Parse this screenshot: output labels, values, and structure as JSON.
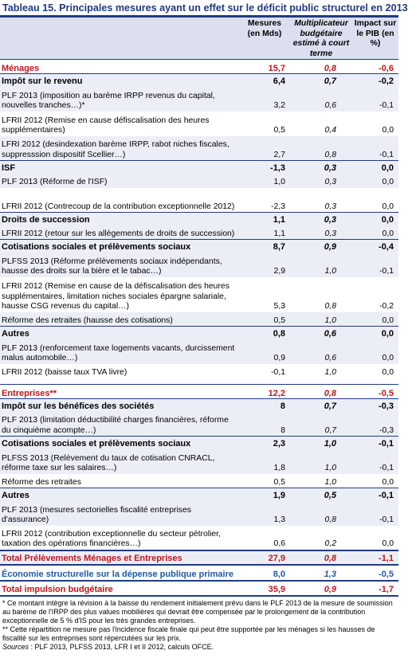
{
  "title": "Tableau 15. Principales mesures ayant un effet sur le déficit public structurel en 2013",
  "header": {
    "col1": "Mesures (en Mds)",
    "col2": "Multiplicateur budgétaire estimé à court terme",
    "col3": "Impact sur le PIB (en %)"
  },
  "rows": [
    {
      "type": "cat",
      "label": "Ménages",
      "v1": "15,7",
      "v2": "0,8",
      "v3": "-0,6"
    },
    {
      "type": "sub",
      "label": "Impôt sur le revenu",
      "v1": "6,4",
      "v2": "0,7",
      "v3": "-0,2"
    },
    {
      "type": "item",
      "lines": 2,
      "label": "PLF 2013 (imposition au barème IRPP revenus du capital, nouvelles tranches…)*",
      "v1": "3,2",
      "v2": "0,6",
      "v3": "-0,1"
    },
    {
      "type": "item",
      "lines": 2,
      "label": "LFRII 2012 (Remise en cause défiscalisation des heures supplémentaires)",
      "v1": "0,5",
      "v2": "0,4",
      "v3": "0,0"
    },
    {
      "type": "item",
      "lines": 2,
      "label": "LFRI 2012 (desindexation barème IRPP, rabot niches fiscales, suppresssion dispositif Scellier…)",
      "v1": "2,7",
      "v2": "0,8",
      "v3": "-0,1"
    },
    {
      "type": "sub",
      "label": "ISF",
      "v1": "-1,3",
      "v2": "0,3",
      "v3": "0,0"
    },
    {
      "type": "item",
      "lines": 1,
      "label": "PLF 2013 (Réforme de l'ISF)",
      "v1": "1,0",
      "v2": "0,3",
      "v3": "0,0"
    },
    {
      "type": "item",
      "lines": 2,
      "label": "LFRII 2012 (Contrecoup de la contribution exceptionnelle 2012)",
      "v1": "-2,3",
      "v2": "0,3",
      "v3": "0,0"
    },
    {
      "type": "sub",
      "label": "Droits de succession",
      "v1": "1,1",
      "v2": "0,3",
      "v3": "0,0"
    },
    {
      "type": "item",
      "lines": 1,
      "label": "LFRII 2012 (retour sur les allègements de droits de succession)",
      "v1": "1,1",
      "v2": "0,3",
      "v3": "0,0"
    },
    {
      "type": "sub",
      "label": "Cotisations sociales et prélèvements sociaux",
      "v1": "8,7",
      "v2": "0,9",
      "v3": "-0,4"
    },
    {
      "type": "item",
      "lines": 2,
      "label": "PLFSS 2013 (Réforme prélèvements sociaux indépendants, hausse des droits sur la bière et le tabac…)",
      "v1": "2,9",
      "v2": "1,0",
      "v3": "-0,1"
    },
    {
      "type": "item",
      "lines": 3,
      "label": "LFRII 2012 (Remise en cause de la défiscalisation des heures supplémentaires, limitation niches sociales épargne salariale, hausse CSG revenus du capital…)",
      "v1": "5,3",
      "v2": "0,8",
      "v3": "-0,2"
    },
    {
      "type": "item",
      "lines": 1,
      "label": "Réforme des retraites (hausse des cotisations)",
      "v1": "0,5",
      "v2": "1,0",
      "v3": "0,0"
    },
    {
      "type": "sub",
      "label": "Autres",
      "v1": "0,8",
      "v2": "0,6",
      "v3": "0,0"
    },
    {
      "type": "item",
      "lines": 2,
      "label": "PLF 2013 (renforcement taxe logements vacants, durcissement malus automobile…)",
      "v1": "0,9",
      "v2": "0,6",
      "v3": "0,0"
    },
    {
      "type": "item",
      "lines": 1,
      "label": "LFRII 2012 (baisse taux TVA livre)",
      "v1": "-0,1",
      "v2": "1,0",
      "v3": "0,0"
    },
    {
      "type": "gap"
    },
    {
      "type": "cat",
      "label": "Entreprises**",
      "v1": "12,2",
      "v2": "0,8",
      "v3": "-0,5"
    },
    {
      "type": "sub",
      "label": "Impôt sur les bénéfices des sociétés",
      "v1": "8",
      "v2": "0,7",
      "v3": "-0,3"
    },
    {
      "type": "item",
      "lines": 2,
      "label": "PLF 2013 (limitation déductibilité charges financières, réforme du cinquième acompte…)",
      "v1": "8",
      "v2": "0,7",
      "v3": "-0,3"
    },
    {
      "type": "sub",
      "label": "Cotisations sociales et prélèvements sociaux",
      "v1": "2,3",
      "v2": "1,0",
      "v3": "-0,1"
    },
    {
      "type": "item",
      "lines": 2,
      "label": "PLFSS 2013 (Relèvement du taux de cotisation CNRACL, réforme taxe sur les salaires…)",
      "v1": "1,8",
      "v2": "1,0",
      "v3": "-0,1"
    },
    {
      "type": "item",
      "lines": 1,
      "label": "Réforme des retraites",
      "v1": "0,5",
      "v2": "1,0",
      "v3": "0,0"
    },
    {
      "type": "sub",
      "label": "Autres",
      "v1": "1,9",
      "v2": "0,5",
      "v3": "-0,1"
    },
    {
      "type": "item",
      "lines": 2,
      "label": "PLF 2013 (mesures sectorielles fiscalité entreprises d'assurance)",
      "v1": "1,3",
      "v2": "0,8",
      "v3": "-0,1"
    },
    {
      "type": "item",
      "lines": 2,
      "label": "LFRII 2012 (contribution exceptionnelle du secteur pétrolier, taxation des opérations financières…)",
      "v1": "0,6",
      "v2": "0,2",
      "v3": "0,0"
    }
  ],
  "total_prelevements": {
    "label": "Total Prélèvements Ménages et Entreprises",
    "v1": "27,9",
    "v2": "0,8",
    "v3": "-1,1"
  },
  "economie": {
    "label": "Économie structurelle sur la dépense publique primaire",
    "v1": "8,0",
    "v2": "1,3",
    "v3": "-0,5"
  },
  "total_budget": {
    "label": "Total impulsion budgétaire",
    "v1": "35,9",
    "v2": "0,9",
    "v3": "-1,7"
  },
  "notes": {
    "note1": "* Ce montant intègre la révision à la baisse du rendement initialement prévu dans le PLF 2013 de la mesure de soumission au barème de l'IRPP des plus values mobilières qui devrait être compensée par le prolongement de la contribution exceptionnelle de 5 % d'IS pour les très grandes entreprises.",
    "note2": "** Cette répartition ne mesure pas l'incidence fiscale finale qui peut être supportée par les ménages si les hausses de fiscalité sur les entreprises sont répercutées sur les prix.",
    "sources_label": "Sources",
    "sources_text": " : PLF 2013, PLFSS 2013, LFR I et II 2012, calculs OFCE."
  }
}
